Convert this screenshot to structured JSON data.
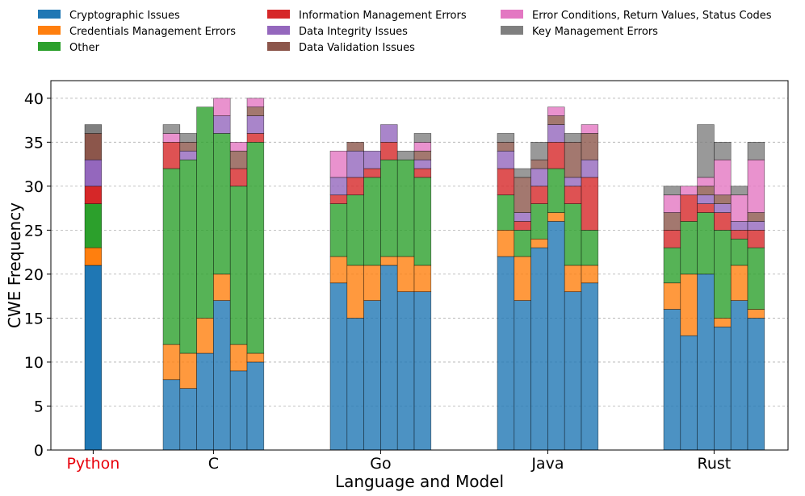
{
  "chart_data": {
    "type": "bar",
    "stacked": true,
    "xlabel": "Language and Model",
    "ylabel": "CWE Frequency",
    "ylim": [
      0,
      42
    ],
    "yticks": [
      0,
      5,
      10,
      15,
      20,
      25,
      30,
      35,
      40
    ],
    "grid": "y-dashed",
    "legend_position": "top",
    "categories_order": [
      "Cryptographic Issues",
      "Credentials Management Errors",
      "Other",
      "Information Management Errors",
      "Data Integrity Issues",
      "Data Validation Issues",
      "Error Conditions, Return Values, Status Codes",
      "Key Management Errors"
    ],
    "legend_order": [
      "Cryptographic Issues",
      "Credentials Management Errors",
      "Other",
      "Information Management Errors",
      "Data Integrity Issues",
      "Data Validation Issues",
      "Error Conditions, Return Values, Status Codes",
      "Key Management Errors"
    ],
    "colors": [
      "#1f77b4",
      "#ff7f0e",
      "#2ca02c",
      "#d62728",
      "#9467bd",
      "#8c564b",
      "#e377c2",
      "#7f7f7f"
    ],
    "groups": [
      {
        "label": "Python",
        "label_color": "#e8000b",
        "highlight": true,
        "bars": [
          [
            21,
            2,
            5,
            2,
            3,
            3,
            0,
            1
          ]
        ]
      },
      {
        "label": "C",
        "label_color": "#000000",
        "highlight": false,
        "bars": [
          [
            8,
            4,
            20,
            3,
            0,
            0,
            1,
            1
          ],
          [
            7,
            4,
            22,
            0,
            1,
            1,
            0,
            1
          ],
          [
            11,
            4,
            24,
            0,
            0,
            0,
            0,
            0
          ],
          [
            17,
            3,
            16,
            0,
            2,
            0,
            2,
            0
          ],
          [
            9,
            3,
            18,
            2,
            0,
            2,
            1,
            0
          ],
          [
            10,
            1,
            24,
            1,
            2,
            1,
            1,
            0
          ]
        ]
      },
      {
        "label": "Go",
        "label_color": "#000000",
        "highlight": false,
        "bars": [
          [
            19,
            3,
            6,
            1,
            2,
            0,
            3,
            0
          ],
          [
            15,
            6,
            8,
            2,
            3,
            1,
            0,
            0
          ],
          [
            17,
            4,
            10,
            1,
            2,
            0,
            0,
            0
          ],
          [
            21,
            1,
            11,
            2,
            2,
            0,
            0,
            0
          ],
          [
            18,
            4,
            11,
            0,
            0,
            0,
            0,
            1
          ],
          [
            18,
            3,
            10,
            1,
            1,
            1,
            1,
            1
          ]
        ]
      },
      {
        "label": "Java",
        "label_color": "#000000",
        "highlight": false,
        "bars": [
          [
            22,
            3,
            4,
            3,
            2,
            1,
            0,
            1
          ],
          [
            17,
            5,
            3,
            1,
            1,
            4,
            0,
            1
          ],
          [
            23,
            1,
            4,
            2,
            2,
            1,
            0,
            2
          ],
          [
            26,
            1,
            5,
            3,
            2,
            1,
            1,
            0
          ],
          [
            18,
            3,
            7,
            2,
            1,
            4,
            0,
            1
          ],
          [
            19,
            2,
            4,
            6,
            2,
            3,
            1,
            0
          ]
        ]
      },
      {
        "label": "Rust",
        "label_color": "#000000",
        "highlight": false,
        "bars": [
          [
            16,
            3,
            4,
            2,
            0,
            2,
            2,
            1
          ],
          [
            13,
            7,
            6,
            3,
            0,
            0,
            1,
            0
          ],
          [
            20,
            0,
            7,
            1,
            1,
            1,
            1,
            6
          ],
          [
            14,
            1,
            10,
            2,
            1,
            1,
            4,
            2
          ],
          [
            17,
            4,
            3,
            1,
            1,
            0,
            3,
            1
          ],
          [
            15,
            1,
            7,
            2,
            1,
            1,
            6,
            2
          ]
        ]
      }
    ]
  }
}
